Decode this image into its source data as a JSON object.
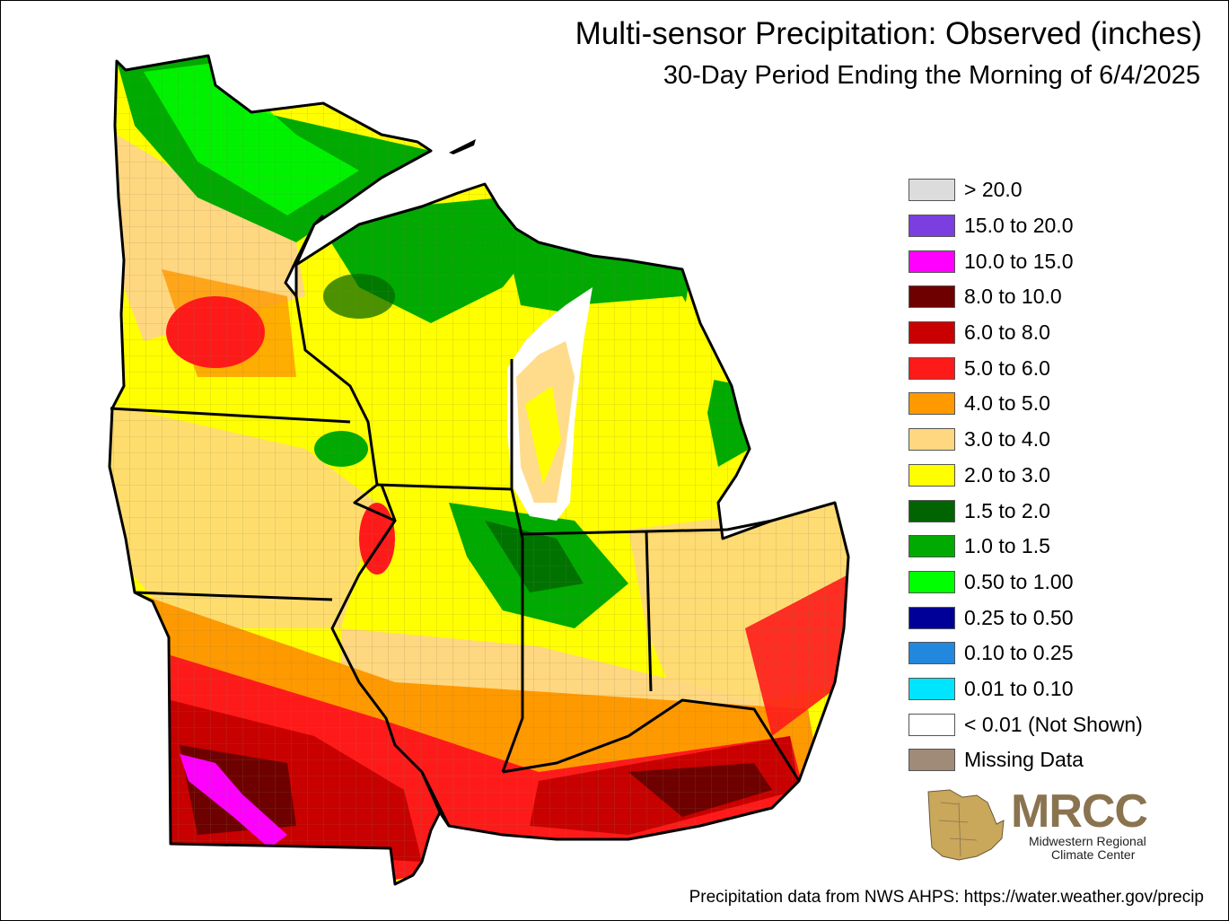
{
  "title": "Multi-sensor Precipitation: Observed (inches)",
  "subtitle": "30-Day Period Ending the Morning of 6/4/2025",
  "legend": [
    {
      "label": "> 20.0",
      "color": "#dcdcdc"
    },
    {
      "label": "15.0 to 20.0",
      "color": "#7b3fe0"
    },
    {
      "label": "10.0 to 15.0",
      "color": "#ff00ff"
    },
    {
      "label": "8.0 to 10.0",
      "color": "#6e0000"
    },
    {
      "label": "6.0 to 8.0",
      "color": "#c80000"
    },
    {
      "label": "5.0 to 6.0",
      "color": "#ff1a1a"
    },
    {
      "label": "4.0 to 5.0",
      "color": "#ff9900"
    },
    {
      "label": "3.0 to 4.0",
      "color": "#ffd780"
    },
    {
      "label": "2.0 to 3.0",
      "color": "#ffff00"
    },
    {
      "label": "1.5 to 2.0",
      "color": "#006400"
    },
    {
      "label": "1.0 to 1.5",
      "color": "#00aa00"
    },
    {
      "label": "0.50 to 1.00",
      "color": "#00ff00"
    },
    {
      "label": "0.25 to 0.50",
      "color": "#000099"
    },
    {
      "label": "0.10 to 0.25",
      "color": "#2288dd"
    },
    {
      "label": "0.01 to 0.10",
      "color": "#00e5ff"
    },
    {
      "label": "< 0.01 (Not Shown)",
      "color": "#ffffff"
    },
    {
      "label": "Missing Data",
      "color": "#a08a78"
    }
  ],
  "logo": {
    "acronym": "MRCC",
    "name_line1": "Midwestern Regional",
    "name_line2": "Climate Center",
    "color": "#8a734f"
  },
  "credit": "Precipitation data from NWS AHPS: https://water.weather.gov/precip"
}
